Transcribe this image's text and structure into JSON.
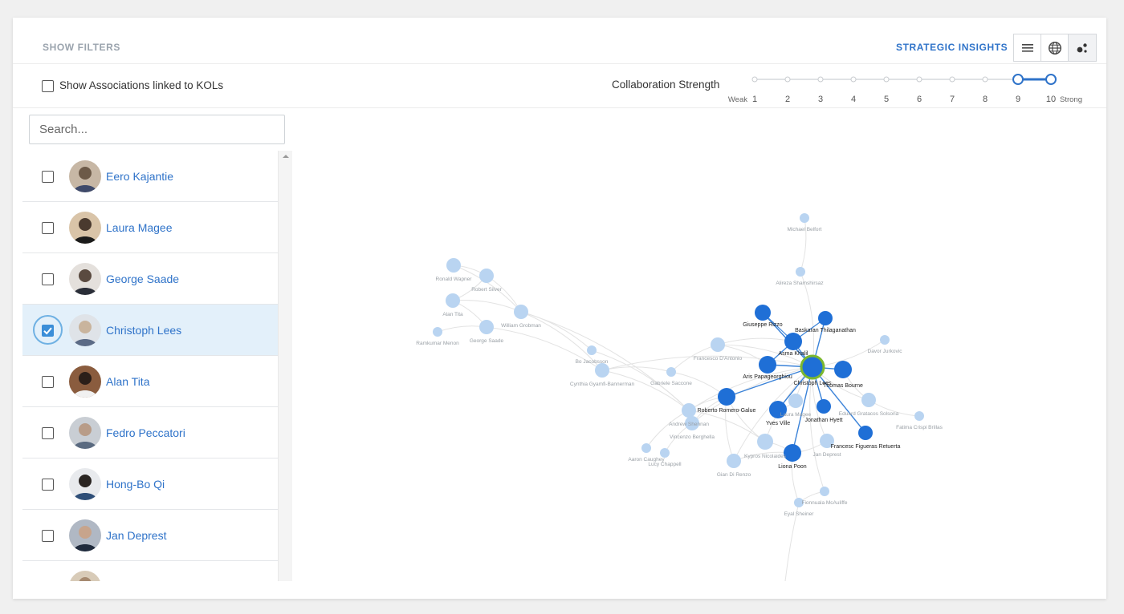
{
  "topbar": {
    "show_filters": "SHOW FILTERS",
    "strategic_insights": "STRATEGIC INSIGHTS",
    "view_buttons": [
      "list-view-icon",
      "globe-icon",
      "network-icon"
    ]
  },
  "filters": {
    "associations_label": "Show Associations linked to KOLs",
    "associations_checked": false,
    "collab_label": "Collaboration Strength",
    "slider": {
      "weak_label": "Weak",
      "strong_label": "Strong",
      "ticks": [
        "1",
        "2",
        "3",
        "4",
        "5",
        "6",
        "7",
        "8",
        "9",
        "10"
      ],
      "range_low": 9,
      "range_high": 10
    }
  },
  "search": {
    "placeholder": "Search..."
  },
  "kols": [
    {
      "name": "Eero Kajantie",
      "checked": false
    },
    {
      "name": "Laura Magee",
      "checked": false
    },
    {
      "name": "George Saade",
      "checked": false
    },
    {
      "name": "Christoph Lees",
      "checked": true
    },
    {
      "name": "Alan Tita",
      "checked": false
    },
    {
      "name": "Fedro Peccatori",
      "checked": false
    },
    {
      "name": "Hong-Bo Qi",
      "checked": false
    },
    {
      "name": "Jan Deprest",
      "checked": false
    },
    {
      "name": "",
      "checked": false
    }
  ],
  "graph": {
    "colors": {
      "strong": "#1f6fd6",
      "weak": "#b9d4f1",
      "focus_ring": "#7cb82f",
      "edge_strong": "#3a82d8",
      "edge_weak": "#e3e3e3",
      "label_strong": "#222222",
      "label_weak": "#9aa0a6"
    },
    "nodes": [
      {
        "name": "Michael Belfort",
        "strong": false
      },
      {
        "name": "Alireza Shamshirsaz",
        "strong": false
      },
      {
        "name": "Ronald Wapner",
        "strong": false
      },
      {
        "name": "Robert Silver",
        "strong": false
      },
      {
        "name": "Alan Tita",
        "strong": false
      },
      {
        "name": "William Grobman",
        "strong": false
      },
      {
        "name": "Ramkumar Menon",
        "strong": false
      },
      {
        "name": "George Saade",
        "strong": false
      },
      {
        "name": "Bo Jacobsson",
        "strong": false
      },
      {
        "name": "Cynthia Gyamfi-Bannerman",
        "strong": false
      },
      {
        "name": "Gabriele Saccone",
        "strong": false
      },
      {
        "name": "Francesco D'Antonio",
        "strong": false
      },
      {
        "name": "Andrew Shennan",
        "strong": false
      },
      {
        "name": "Vincenzo Berghella",
        "strong": false
      },
      {
        "name": "Aaron Caughey",
        "strong": false
      },
      {
        "name": "Lucy Chappell",
        "strong": false
      },
      {
        "name": "Gian Di Renzo",
        "strong": false
      },
      {
        "name": "Kypros Nicolaides",
        "strong": false
      },
      {
        "name": "Laura Magee",
        "strong": false
      },
      {
        "name": "Jan Deprest",
        "strong": false
      },
      {
        "name": "Eduard Gratacos Solsona",
        "strong": false
      },
      {
        "name": "Fatima Crispi Brillas",
        "strong": false
      },
      {
        "name": "Davor Jurkovic",
        "strong": false
      },
      {
        "name": "Fionnuala McAuliffe",
        "strong": false
      },
      {
        "name": "Eyal Sheiner",
        "strong": false
      },
      {
        "name": "Giuseppe Rizzo",
        "strong": true
      },
      {
        "name": "Baskaran Thilaganathan",
        "strong": true
      },
      {
        "name": "Asma Khalil",
        "strong": true
      },
      {
        "name": "Aris Papageorghiou",
        "strong": true
      },
      {
        "name": "Christoph Lees",
        "strong": true,
        "focus": true
      },
      {
        "name": "Thomas Bourne",
        "strong": true
      },
      {
        "name": "Roberto Romero-Galue",
        "strong": true
      },
      {
        "name": "Yves Ville",
        "strong": true
      },
      {
        "name": "Jonathan Hyett",
        "strong": true
      },
      {
        "name": "Francesc Figueras Retuerta",
        "strong": true
      },
      {
        "name": "Liona Poon",
        "strong": true
      }
    ]
  }
}
